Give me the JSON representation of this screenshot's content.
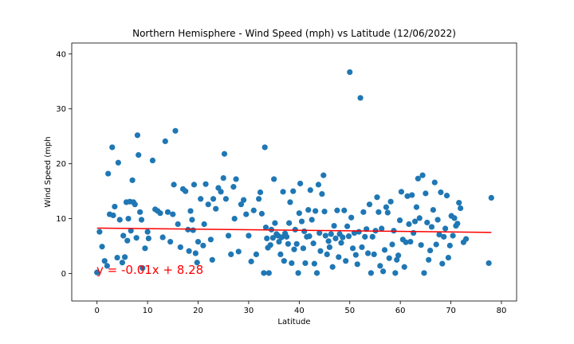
{
  "chart_data": {
    "type": "scatter",
    "title": "Northern Hemisphere - Wind Speed (mph) vs Latitude (12/06/2022)",
    "xlabel": "Latitude",
    "ylabel": "Wind Speed (mph",
    "xlim": [
      -5,
      83
    ],
    "ylim": [
      -5,
      42
    ],
    "xticks": [
      0,
      10,
      20,
      30,
      40,
      50,
      60,
      70,
      80
    ],
    "yticks": [
      0,
      10,
      20,
      30,
      40
    ],
    "grid": false,
    "point_color": "#1f77b4",
    "regression": {
      "equation": "y = -0.01x + 8.28",
      "slope": -0.01,
      "intercept": 8.28,
      "x_range": [
        0,
        78
      ],
      "color": "#ff0000"
    },
    "points": [
      [
        0,
        0.2
      ],
      [
        0.5,
        7.6
      ],
      [
        1,
        4.9
      ],
      [
        1.5,
        2.3
      ],
      [
        2,
        1.4
      ],
      [
        2.2,
        18.2
      ],
      [
        2.5,
        10.8
      ],
      [
        3,
        23
      ],
      [
        3.2,
        10.6
      ],
      [
        3.5,
        12.2
      ],
      [
        4,
        2.9
      ],
      [
        4.2,
        20.2
      ],
      [
        4.5,
        9.8
      ],
      [
        5,
        2
      ],
      [
        5.2,
        6.9
      ],
      [
        5.5,
        3
      ],
      [
        5.8,
        13
      ],
      [
        6,
        6
      ],
      [
        6.2,
        10
      ],
      [
        6.5,
        13.1
      ],
      [
        6.7,
        7.8
      ],
      [
        7,
        17
      ],
      [
        7.2,
        13
      ],
      [
        7.5,
        12.6
      ],
      [
        7.8,
        6.5
      ],
      [
        8,
        25.2
      ],
      [
        8.2,
        21.6
      ],
      [
        8.5,
        11.2
      ],
      [
        8.8,
        9.8
      ],
      [
        9,
        1
      ],
      [
        9.5,
        4.6
      ],
      [
        10,
        7.6
      ],
      [
        10.2,
        6.4
      ],
      [
        11,
        20.6
      ],
      [
        11.5,
        11.7
      ],
      [
        12,
        11.4
      ],
      [
        12.5,
        11
      ],
      [
        13,
        6.6
      ],
      [
        13.5,
        24.1
      ],
      [
        14,
        11.2
      ],
      [
        14.5,
        5.8
      ],
      [
        15,
        10.8
      ],
      [
        15.2,
        16.2
      ],
      [
        15.5,
        26
      ],
      [
        16,
        9
      ],
      [
        16.5,
        4.8
      ],
      [
        17,
        15.4
      ],
      [
        17.5,
        15
      ],
      [
        18,
        8
      ],
      [
        18.2,
        4.1
      ],
      [
        18.5,
        11.4
      ],
      [
        18.8,
        9.8
      ],
      [
        19,
        7.9
      ],
      [
        19.2,
        16.2
      ],
      [
        19.5,
        3.7
      ],
      [
        19.8,
        2
      ],
      [
        20,
        5.8
      ],
      [
        20.5,
        13.6
      ],
      [
        21,
        5.1
      ],
      [
        21.2,
        9
      ],
      [
        21.5,
        16.3
      ],
      [
        22,
        12.6
      ],
      [
        22.5,
        6.2
      ],
      [
        22.8,
        2.5
      ],
      [
        23,
        13.6
      ],
      [
        23.5,
        11.8
      ],
      [
        24,
        15.6
      ],
      [
        24.5,
        14.9
      ],
      [
        25,
        17.4
      ],
      [
        25.2,
        21.8
      ],
      [
        25.5,
        13.6
      ],
      [
        26,
        6.9
      ],
      [
        26.5,
        3.5
      ],
      [
        27,
        15.8
      ],
      [
        27.2,
        10
      ],
      [
        27.5,
        17.2
      ],
      [
        28,
        4
      ],
      [
        28.5,
        12.6
      ],
      [
        29,
        13.4
      ],
      [
        29.5,
        10.8
      ],
      [
        30,
        6.9
      ],
      [
        30.5,
        2.2
      ],
      [
        31,
        11.5
      ],
      [
        31.5,
        3.5
      ],
      [
        32,
        13.6
      ],
      [
        32.3,
        14.8
      ],
      [
        32.6,
        10.9
      ],
      [
        33,
        0.1
      ],
      [
        33.2,
        23
      ],
      [
        33.4,
        8.4
      ],
      [
        33.6,
        6.4
      ],
      [
        33.8,
        4.7
      ],
      [
        34,
        0.1
      ],
      [
        34.3,
        5.2
      ],
      [
        34.5,
        8
      ],
      [
        34.8,
        6.5
      ],
      [
        35,
        17.2
      ],
      [
        35.2,
        9.2
      ],
      [
        35.5,
        7.2
      ],
      [
        35.8,
        6.9
      ],
      [
        36,
        5.8
      ],
      [
        36.3,
        3.5
      ],
      [
        36.5,
        6.6
      ],
      [
        36.8,
        14.9
      ],
      [
        37,
        2.3
      ],
      [
        37.2,
        7.3
      ],
      [
        37.5,
        6.7
      ],
      [
        37.8,
        5.4
      ],
      [
        38,
        9.2
      ],
      [
        38.2,
        13
      ],
      [
        38.5,
        1.9
      ],
      [
        38.8,
        15
      ],
      [
        39,
        4.4
      ],
      [
        39.2,
        8
      ],
      [
        39.5,
        5.4
      ],
      [
        39.8,
        0.1
      ],
      [
        40,
        11
      ],
      [
        40.2,
        16.4
      ],
      [
        40.5,
        9.5
      ],
      [
        40.8,
        4.6
      ],
      [
        41,
        7.7
      ],
      [
        41.2,
        1.9
      ],
      [
        41.5,
        6.7
      ],
      [
        41.8,
        11.6
      ],
      [
        42,
        6.8
      ],
      [
        42.2,
        15.2
      ],
      [
        42.5,
        9.8
      ],
      [
        42.8,
        5.5
      ],
      [
        43,
        1.8
      ],
      [
        43.2,
        11.4
      ],
      [
        43.5,
        0.1
      ],
      [
        43.8,
        16.2
      ],
      [
        44,
        7.4
      ],
      [
        44.2,
        4.1
      ],
      [
        44.5,
        14.5
      ],
      [
        44.8,
        17.9
      ],
      [
        45,
        11.3
      ],
      [
        45.2,
        6.9
      ],
      [
        45.5,
        3.5
      ],
      [
        45.8,
        5.9
      ],
      [
        46,
        4.8
      ],
      [
        46.3,
        7.2
      ],
      [
        46.6,
        1.2
      ],
      [
        46.9,
        8.7
      ],
      [
        47.2,
        6.4
      ],
      [
        47.5,
        11.5
      ],
      [
        47.8,
        3
      ],
      [
        48,
        7.2
      ],
      [
        48.3,
        5.6
      ],
      [
        48.6,
        6.6
      ],
      [
        48.9,
        11.5
      ],
      [
        49.2,
        2.3
      ],
      [
        49.5,
        8.6
      ],
      [
        49.8,
        6.8
      ],
      [
        50,
        36.7
      ],
      [
        50.3,
        10.2
      ],
      [
        50.6,
        4.6
      ],
      [
        50.9,
        7.4
      ],
      [
        51.2,
        3.4
      ],
      [
        51.5,
        1.7
      ],
      [
        51.8,
        7.6
      ],
      [
        52.1,
        32
      ],
      [
        52.4,
        4.8
      ],
      [
        52.7,
        11.2
      ],
      [
        53,
        6.7
      ],
      [
        53.3,
        8.1
      ],
      [
        53.6,
        3.7
      ],
      [
        53.9,
        12.6
      ],
      [
        54.2,
        0.1
      ],
      [
        54.5,
        6.7
      ],
      [
        54.8,
        3.5
      ],
      [
        55.1,
        7.8
      ],
      [
        55.4,
        13.9
      ],
      [
        55.7,
        11.2
      ],
      [
        56,
        1.4
      ],
      [
        56.3,
        8.2
      ],
      [
        56.6,
        0.4
      ],
      [
        56.9,
        4.3
      ],
      [
        57.2,
        12.1
      ],
      [
        57.5,
        11.1
      ],
      [
        57.8,
        2.8
      ],
      [
        58.1,
        13.1
      ],
      [
        58.4,
        5.3
      ],
      [
        58.7,
        7.8
      ],
      [
        59,
        0.1
      ],
      [
        59.3,
        2.5
      ],
      [
        59.6,
        3.3
      ],
      [
        59.9,
        9.7
      ],
      [
        60.2,
        14.9
      ],
      [
        60.5,
        6.2
      ],
      [
        60.8,
        1.2
      ],
      [
        61.1,
        5.7
      ],
      [
        61.4,
        14.1
      ],
      [
        61.7,
        9
      ],
      [
        62,
        5.8
      ],
      [
        62.3,
        14.3
      ],
      [
        62.6,
        7.4
      ],
      [
        62.9,
        9.5
      ],
      [
        63.2,
        12.1
      ],
      [
        63.5,
        17.3
      ],
      [
        63.8,
        10.1
      ],
      [
        64.1,
        5.2
      ],
      [
        64.4,
        17.9
      ],
      [
        64.7,
        0.1
      ],
      [
        65,
        14.6
      ],
      [
        65.3,
        9.3
      ],
      [
        65.6,
        2.5
      ],
      [
        65.9,
        4.2
      ],
      [
        66.2,
        8.5
      ],
      [
        66.5,
        11.6
      ],
      [
        66.8,
        16.6
      ],
      [
        67.1,
        5.3
      ],
      [
        67.4,
        9.8
      ],
      [
        67.7,
        7.1
      ],
      [
        68,
        14.8
      ],
      [
        68.3,
        1.8
      ],
      [
        68.6,
        6.7
      ],
      [
        68.9,
        8.2
      ],
      [
        69.2,
        14.2
      ],
      [
        69.5,
        2.9
      ],
      [
        69.8,
        5.1
      ],
      [
        70.1,
        10.5
      ],
      [
        70.4,
        6.9
      ],
      [
        70.7,
        10.1
      ],
      [
        71,
        8.7
      ],
      [
        71.3,
        9.1
      ],
      [
        71.6,
        12.9
      ],
      [
        71.9,
        11.9
      ],
      [
        72.5,
        5.7
      ],
      [
        73,
        6.3
      ],
      [
        77.5,
        1.9
      ],
      [
        78,
        13.8
      ]
    ]
  }
}
